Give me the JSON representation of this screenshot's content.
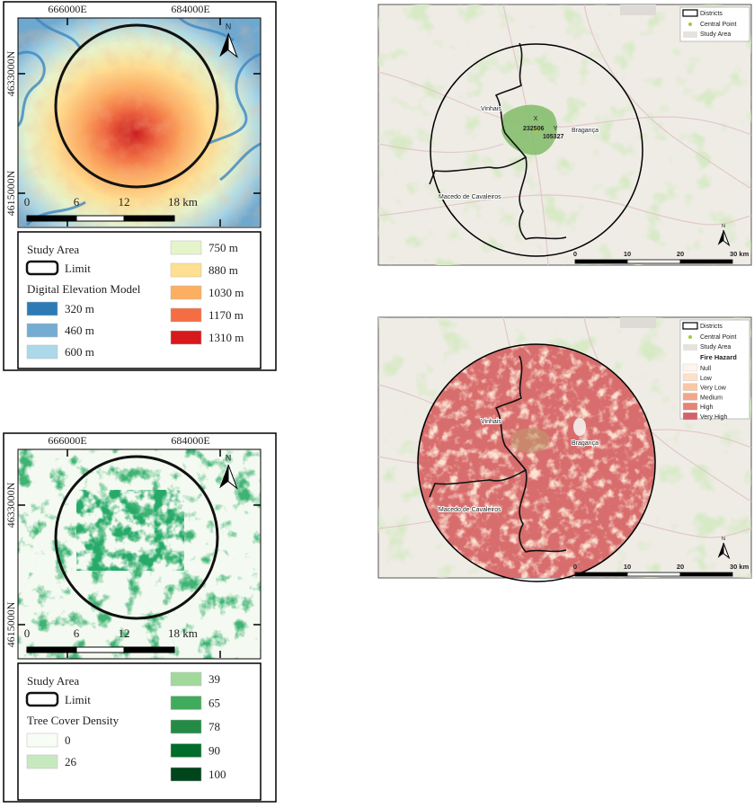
{
  "elevation_map": {
    "x_coords": [
      "666000E",
      "684000E"
    ],
    "y_coords": [
      "4633000N",
      "4615000N"
    ],
    "north": "N",
    "scale_labels": [
      "0",
      "6",
      "12",
      "18 km"
    ],
    "legend": {
      "title": "Study Area",
      "limit": "Limit",
      "layer": "Digital Elevation Model",
      "classes": [
        {
          "label": "320 m",
          "color": "#2c7bb6"
        },
        {
          "label": "460 m",
          "color": "#74add1"
        },
        {
          "label": "600 m",
          "color": "#abd9e9"
        },
        {
          "label": "750 m",
          "color": "#e6f5c9"
        },
        {
          "label": "880 m",
          "color": "#fee090"
        },
        {
          "label": "1030 m",
          "color": "#fdae61"
        },
        {
          "label": "1170 m",
          "color": "#f46d43"
        },
        {
          "label": "1310 m",
          "color": "#d7191c"
        }
      ]
    }
  },
  "tree_cover_map": {
    "x_coords": [
      "666000E",
      "684000E"
    ],
    "y_coords": [
      "4633000N",
      "4615000N"
    ],
    "north": "N",
    "scale_labels": [
      "0",
      "6",
      "12",
      "18 km"
    ],
    "legend": {
      "title": "Study Area",
      "limit": "Limit",
      "layer": "Tree Cover Density",
      "classes": [
        {
          "label": "0",
          "color": "#f7fcf5"
        },
        {
          "label": "26",
          "color": "#c7e9c0"
        },
        {
          "label": "39",
          "color": "#a1d99b"
        },
        {
          "label": "65",
          "color": "#41ab5d"
        },
        {
          "label": "78",
          "color": "#238b45"
        },
        {
          "label": "90",
          "color": "#006d2c"
        },
        {
          "label": "100",
          "color": "#00441b"
        }
      ]
    }
  },
  "district_map": {
    "legend": [
      "Districts",
      "Central Point",
      "Study Area"
    ],
    "places": [
      "Vinhais",
      "Bragança",
      "Macedo de Cavaleiros"
    ],
    "central_point": {
      "x_label": "X",
      "x": "232506",
      "y_label": "Y",
      "y": "105327"
    },
    "north": "N",
    "scale_labels": [
      "0",
      "10",
      "20",
      "30 km"
    ]
  },
  "fire_hazard_map": {
    "legend": [
      "Districts",
      "Central Point",
      "Study Area"
    ],
    "layer": "Fire Hazard",
    "classes": [
      {
        "label": "Null",
        "color": "#fdf4ec"
      },
      {
        "label": "Low",
        "color": "#fce1c8"
      },
      {
        "label": "Very Low",
        "color": "#f7c7a6"
      },
      {
        "label": "Medium",
        "color": "#f0a88a"
      },
      {
        "label": "High",
        "color": "#e48477"
      },
      {
        "label": "Very High",
        "color": "#d4616a"
      }
    ],
    "places": [
      "Vinhais",
      "Bragança",
      "Macedo de Cavaleiros"
    ],
    "north": "N",
    "scale_labels": [
      "0",
      "10",
      "20",
      "30 km"
    ]
  }
}
